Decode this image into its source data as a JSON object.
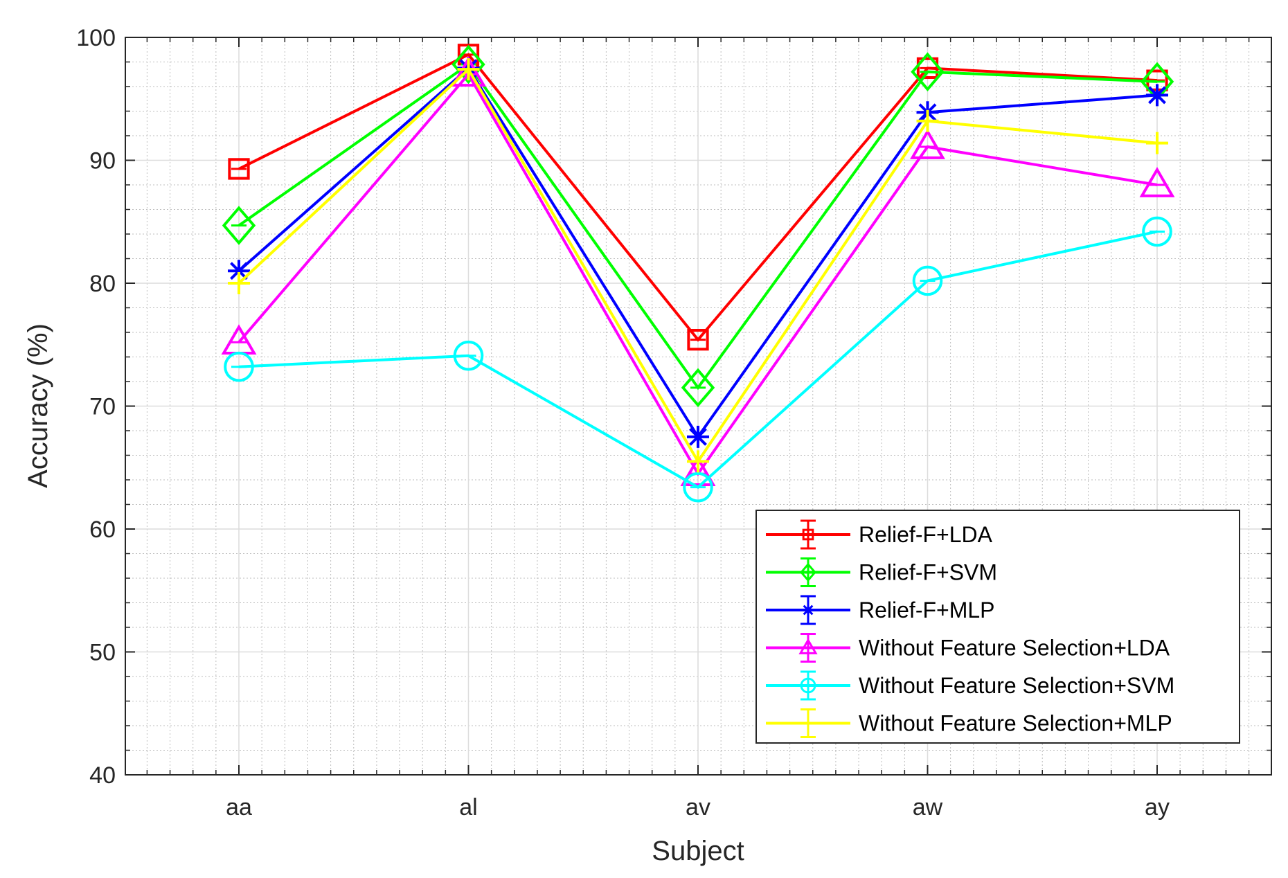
{
  "chart_data": {
    "type": "line",
    "title": "",
    "xlabel": "Subject",
    "ylabel": "Accuracy (%)",
    "categories": [
      "aa",
      "al",
      "av",
      "aw",
      "ay"
    ],
    "ylim": [
      40,
      100
    ],
    "yticks": [
      40,
      50,
      60,
      70,
      80,
      90,
      100
    ],
    "grid": true,
    "minor_grid": true,
    "legend_position": "bottom-right",
    "series": [
      {
        "name": "Relief-F+LDA",
        "color": "#ff0000",
        "marker": "square",
        "values": [
          89.3,
          98.6,
          75.4,
          97.5,
          96.5
        ]
      },
      {
        "name": "Relief-F+SVM",
        "color": "#00ff00",
        "marker": "diamond",
        "values": [
          84.7,
          97.8,
          71.5,
          97.2,
          96.4
        ]
      },
      {
        "name": "Relief-F+MLP",
        "color": "#0000ff",
        "marker": "asterisk",
        "values": [
          81.0,
          97.5,
          67.5,
          93.9,
          95.3
        ]
      },
      {
        "name": "Without Feature Selection+LDA",
        "color": "#ff00ff",
        "marker": "triangle",
        "values": [
          75.2,
          97.0,
          64.5,
          91.1,
          88.0
        ]
      },
      {
        "name": "Without Feature Selection+SVM",
        "color": "#00ffff",
        "marker": "circle",
        "values": [
          73.2,
          74.1,
          63.4,
          80.2,
          84.2
        ]
      },
      {
        "name": "Without Feature Selection+MLP",
        "color": "#ffff00",
        "marker": "plus",
        "values": [
          80.0,
          97.4,
          65.5,
          93.2,
          91.4
        ]
      }
    ]
  }
}
